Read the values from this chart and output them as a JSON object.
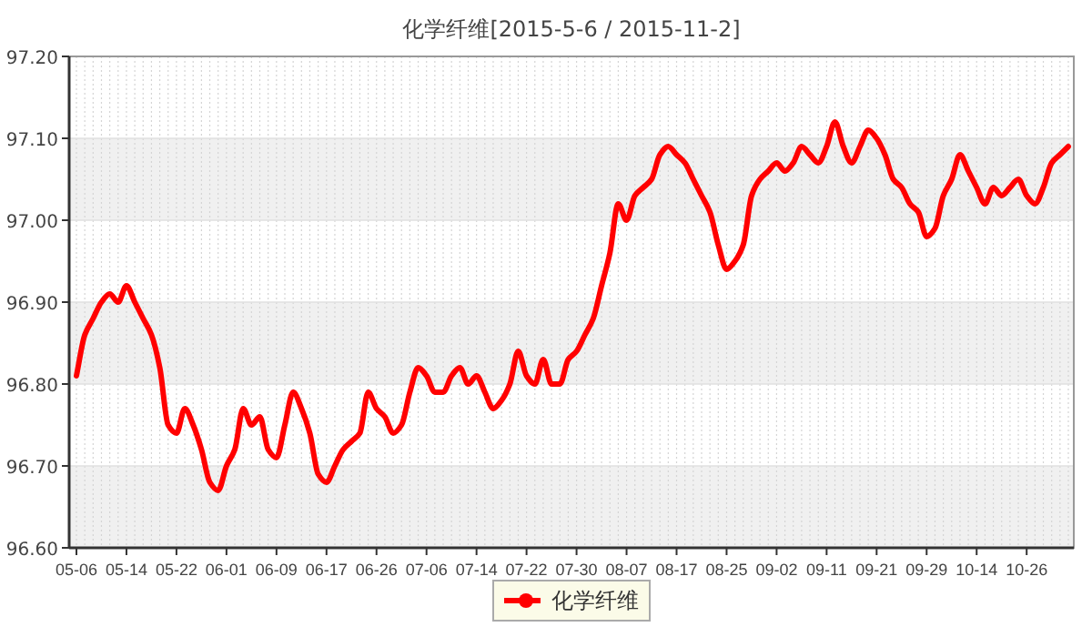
{
  "chart_data": {
    "type": "line",
    "title": "化学纤维[2015-5-6 / 2015-11-2]",
    "categories": [
      "05-06",
      null,
      null,
      null,
      null,
      null,
      "05-14",
      null,
      null,
      null,
      null,
      null,
      "05-22",
      null,
      null,
      null,
      null,
      null,
      "06-01",
      null,
      null,
      null,
      null,
      null,
      "06-09",
      null,
      null,
      null,
      null,
      null,
      "06-17",
      null,
      null,
      null,
      null,
      null,
      "06-26",
      null,
      null,
      null,
      null,
      null,
      "07-06",
      null,
      null,
      null,
      null,
      null,
      "07-14",
      null,
      null,
      null,
      null,
      null,
      "07-22",
      null,
      null,
      null,
      null,
      null,
      "07-30",
      null,
      null,
      null,
      null,
      null,
      "08-07",
      null,
      null,
      null,
      null,
      null,
      "08-17",
      null,
      null,
      null,
      null,
      null,
      "08-25",
      null,
      null,
      null,
      null,
      null,
      "09-02",
      null,
      null,
      null,
      null,
      null,
      "09-11",
      null,
      null,
      null,
      null,
      null,
      "09-21",
      null,
      null,
      null,
      null,
      null,
      "09-29",
      null,
      null,
      null,
      null,
      null,
      "10-14",
      null,
      null,
      null,
      null,
      null,
      "10-26",
      null,
      null,
      null,
      null,
      null
    ],
    "series": [
      {
        "name": "化学纤维",
        "color": "#ff0000",
        "values": [
          96.81,
          96.86,
          96.88,
          96.9,
          96.91,
          96.9,
          96.92,
          96.9,
          96.88,
          96.86,
          96.82,
          96.75,
          96.74,
          96.77,
          96.75,
          96.72,
          96.68,
          96.67,
          96.7,
          96.72,
          96.77,
          96.75,
          96.76,
          96.72,
          96.71,
          96.75,
          96.79,
          96.77,
          96.74,
          96.69,
          96.68,
          96.7,
          96.72,
          96.73,
          96.74,
          96.79,
          96.77,
          96.76,
          96.74,
          96.75,
          96.79,
          96.82,
          96.81,
          96.79,
          96.79,
          96.81,
          96.82,
          96.8,
          96.81,
          96.79,
          96.77,
          96.78,
          96.8,
          96.84,
          96.81,
          96.8,
          96.83,
          96.8,
          96.8,
          96.83,
          96.84,
          96.86,
          96.88,
          96.92,
          96.96,
          97.02,
          97.0,
          97.03,
          97.04,
          97.05,
          97.08,
          97.09,
          97.08,
          97.07,
          97.05,
          97.03,
          97.01,
          96.97,
          96.94,
          96.95,
          96.97,
          97.03,
          97.05,
          97.06,
          97.07,
          97.06,
          97.07,
          97.09,
          97.08,
          97.07,
          97.09,
          97.12,
          97.09,
          97.07,
          97.09,
          97.11,
          97.1,
          97.08,
          97.05,
          97.04,
          97.02,
          97.01,
          96.98,
          96.99,
          97.03,
          97.05,
          97.08,
          97.06,
          97.04,
          97.02,
          97.04,
          97.03,
          97.04,
          97.05,
          97.03,
          97.02,
          97.04,
          97.07,
          97.08,
          97.09
        ]
      }
    ],
    "ylim": [
      96.6,
      97.2
    ],
    "yticks": [
      {
        "value": 96.6,
        "label": "96.60"
      },
      {
        "value": 96.7,
        "label": "96.70"
      },
      {
        "value": 96.8,
        "label": "96.80"
      },
      {
        "value": 96.9,
        "label": "96.90"
      },
      {
        "value": 97.0,
        "label": "97.00"
      },
      {
        "value": 97.1,
        "label": "97.10"
      },
      {
        "value": 97.2,
        "label": "97.20"
      }
    ],
    "bands": [
      {
        "axis": "y",
        "from": 96.6,
        "to": 96.7,
        "color": "#f0f0f0"
      },
      {
        "axis": "y",
        "from": 96.8,
        "to": 96.9,
        "color": "#f0f0f0"
      },
      {
        "axis": "y",
        "from": 97.0,
        "to": 97.1,
        "color": "#f0f0f0"
      }
    ],
    "grid": true,
    "legend": "bottom"
  }
}
